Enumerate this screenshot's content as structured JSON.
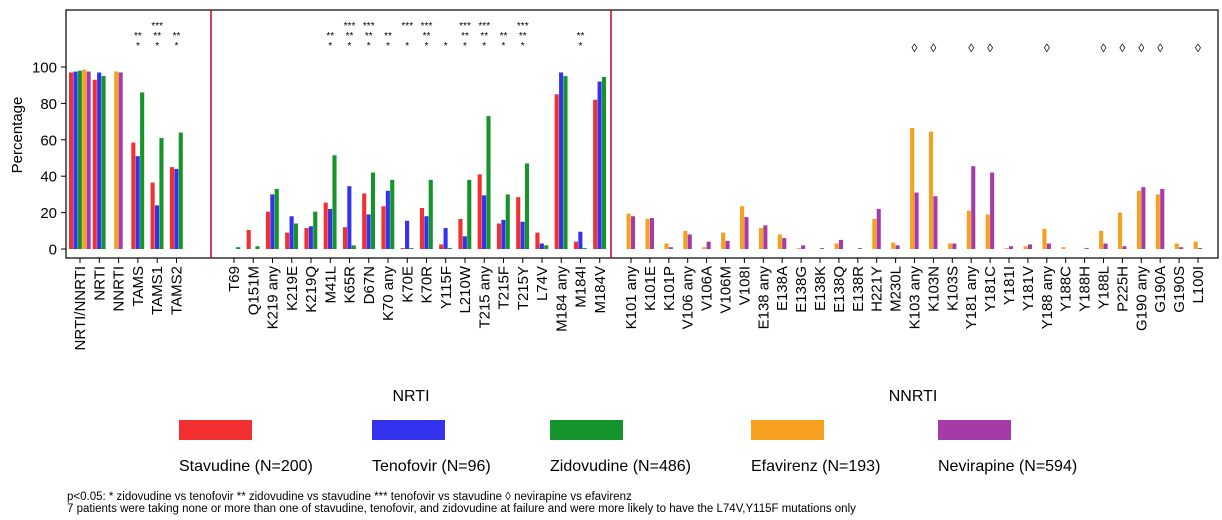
{
  "chart_data": {
    "type": "bar",
    "ylabel": "Percentage",
    "ylim": [
      -5,
      104
    ],
    "yticks": [
      0,
      20,
      40,
      60,
      80,
      100
    ],
    "grid": false,
    "legend_position": "bottom",
    "series": [
      {
        "name": "Stavudine (N=200)",
        "color": "#f23030"
      },
      {
        "name": "Tenofovir (N=96)",
        "color": "#3333ee"
      },
      {
        "name": "Zidovudine (N=486)",
        "color": "#14942a"
      },
      {
        "name": "Efavirenz (N=193)",
        "color": "#f7a020"
      },
      {
        "name": "Nevirapine (N=594)",
        "color": "#a63aa6"
      }
    ],
    "panels": [
      {
        "label": "",
        "categories": [
          {
            "name": "NRTI/NNRTI",
            "values": [
              97,
              97.5,
              98,
              98.5,
              97.5
            ],
            "stars": []
          },
          {
            "name": "NRTI",
            "values": [
              93,
              97,
              95
            ],
            "stars": []
          },
          {
            "name": "NNRTI",
            "values": [
              null,
              null,
              null,
              97.5,
              97
            ],
            "stars": []
          },
          {
            "name": "TAMS",
            "values": [
              58.5,
              51,
              86
            ],
            "stars": [
              "**",
              "*"
            ]
          },
          {
            "name": "TAMS1",
            "values": [
              36.5,
              24,
              61
            ],
            "stars": [
              "***",
              "**",
              "*"
            ]
          },
          {
            "name": "TAMS2",
            "values": [
              45,
              44,
              64
            ],
            "stars": [
              "**",
              "*"
            ]
          }
        ]
      },
      {
        "label": "NRTI",
        "categories": [
          {
            "name": "T69",
            "values": [
              0,
              0,
              1
            ],
            "stars": []
          },
          {
            "name": "Q151M",
            "values": [
              10.5,
              0,
              1.5
            ],
            "stars": []
          },
          {
            "name": "K219 any",
            "values": [
              20.5,
              30,
              33
            ],
            "stars": []
          },
          {
            "name": "K219E",
            "values": [
              9,
              18,
              14
            ],
            "stars": []
          },
          {
            "name": "K219Q",
            "values": [
              11.5,
              12.5,
              20.5
            ],
            "stars": []
          },
          {
            "name": "M41L",
            "values": [
              25.5,
              22,
              51.5
            ],
            "stars": [
              "**",
              "*"
            ]
          },
          {
            "name": "K65R",
            "values": [
              12,
              34.5,
              2
            ],
            "stars": [
              "***",
              "**",
              "*"
            ]
          },
          {
            "name": "D67N",
            "values": [
              30.5,
              19,
              42
            ],
            "stars": [
              "***",
              "**",
              "*"
            ]
          },
          {
            "name": "K70 any",
            "values": [
              23.5,
              32,
              38
            ],
            "stars": [
              "**",
              "*"
            ]
          },
          {
            "name": "K70E",
            "values": [
              0.5,
              15.5,
              0.5
            ],
            "stars": [
              "***",
              "*"
            ]
          },
          {
            "name": "K70R",
            "values": [
              22.5,
              18,
              38
            ],
            "stars": [
              "***",
              "**",
              "*"
            ]
          },
          {
            "name": "Y115F",
            "values": [
              2.5,
              11.5,
              0.5
            ],
            "stars": [
              "*"
            ]
          },
          {
            "name": "L210W",
            "values": [
              16.5,
              7,
              38
            ],
            "stars": [
              "***",
              "**",
              "*"
            ]
          },
          {
            "name": "T215 any",
            "values": [
              41,
              29.5,
              73
            ],
            "stars": [
              "***",
              "**",
              "*"
            ]
          },
          {
            "name": "T215F",
            "values": [
              14,
              16,
              30
            ],
            "stars": [
              "**",
              "*"
            ]
          },
          {
            "name": "T215Y",
            "values": [
              28.5,
              15,
              47
            ],
            "stars": [
              "***",
              "**",
              "*"
            ]
          },
          {
            "name": "L74V",
            "values": [
              9,
              3,
              2
            ],
            "stars": []
          },
          {
            "name": "M184 any",
            "values": [
              85,
              97,
              95
            ],
            "stars": []
          },
          {
            "name": "M184I",
            "values": [
              4,
              9.5,
              0.5
            ],
            "stars": [
              "**",
              "*"
            ]
          },
          {
            "name": "M184V",
            "values": [
              82,
              92,
              94.5
            ],
            "stars": []
          }
        ]
      },
      {
        "label": "NNRTI",
        "categories": [
          {
            "name": "K101 any",
            "values": [
              null,
              null,
              null,
              19.5,
              18
            ],
            "stars": []
          },
          {
            "name": "K101E",
            "values": [
              null,
              null,
              null,
              16.5,
              17
            ],
            "stars": []
          },
          {
            "name": "K101P",
            "values": [
              null,
              null,
              null,
              3,
              1
            ],
            "stars": []
          },
          {
            "name": "V106 any",
            "values": [
              null,
              null,
              null,
              10,
              8
            ],
            "stars": []
          },
          {
            "name": "V106A",
            "values": [
              null,
              null,
              null,
              1,
              4
            ],
            "stars": []
          },
          {
            "name": "V106M",
            "values": [
              null,
              null,
              null,
              9,
              4.5
            ],
            "stars": []
          },
          {
            "name": "V108I",
            "values": [
              null,
              null,
              null,
              23.5,
              17.5
            ],
            "stars": []
          },
          {
            "name": "E138 any",
            "values": [
              null,
              null,
              null,
              11.5,
              13
            ],
            "stars": []
          },
          {
            "name": "E138A",
            "values": [
              null,
              null,
              null,
              8,
              6
            ],
            "stars": []
          },
          {
            "name": "E138G",
            "values": [
              null,
              null,
              null,
              0.5,
              2
            ],
            "stars": []
          },
          {
            "name": "E138K",
            "values": [
              null,
              null,
              null,
              0,
              0.5
            ],
            "stars": []
          },
          {
            "name": "E138Q",
            "values": [
              null,
              null,
              null,
              3,
              5
            ],
            "stars": []
          },
          {
            "name": "E138R",
            "values": [
              null,
              null,
              null,
              0,
              0.5
            ],
            "stars": []
          },
          {
            "name": "H221Y",
            "values": [
              null,
              null,
              null,
              16.5,
              22
            ],
            "stars": []
          },
          {
            "name": "M230L",
            "values": [
              null,
              null,
              null,
              3.5,
              2
            ],
            "stars": []
          },
          {
            "name": "K103 any",
            "values": [
              null,
              null,
              null,
              66.5,
              31
            ],
            "stars": [
              "◊"
            ]
          },
          {
            "name": "K103N",
            "values": [
              null,
              null,
              null,
              64.5,
              29
            ],
            "stars": [
              "◊"
            ]
          },
          {
            "name": "K103S",
            "values": [
              null,
              null,
              null,
              3,
              3
            ],
            "stars": []
          },
          {
            "name": "Y181 any",
            "values": [
              null,
              null,
              null,
              21,
              45.5
            ],
            "stars": [
              "◊"
            ]
          },
          {
            "name": "Y181C",
            "values": [
              null,
              null,
              null,
              19,
              42
            ],
            "stars": [
              "◊"
            ]
          },
          {
            "name": "Y181I",
            "values": [
              null,
              null,
              null,
              0.5,
              1.5
            ],
            "stars": []
          },
          {
            "name": "Y181V",
            "values": [
              null,
              null,
              null,
              1.5,
              2.5
            ],
            "stars": []
          },
          {
            "name": "Y188 any",
            "values": [
              null,
              null,
              null,
              11,
              3
            ],
            "stars": [
              "◊"
            ]
          },
          {
            "name": "Y188C",
            "values": [
              null,
              null,
              null,
              1,
              0
            ],
            "stars": []
          },
          {
            "name": "Y188H",
            "values": [
              null,
              null,
              null,
              0,
              0.5
            ],
            "stars": []
          },
          {
            "name": "Y188L",
            "values": [
              null,
              null,
              null,
              10,
              3
            ],
            "stars": [
              "◊"
            ]
          },
          {
            "name": "P225H",
            "values": [
              null,
              null,
              null,
              20,
              1.5
            ],
            "stars": [
              "◊"
            ]
          },
          {
            "name": "G190 any",
            "values": [
              null,
              null,
              null,
              32,
              34
            ],
            "stars": [
              "◊"
            ]
          },
          {
            "name": "G190A",
            "values": [
              null,
              null,
              null,
              30,
              33
            ],
            "stars": [
              "◊"
            ]
          },
          {
            "name": "G190S",
            "values": [
              null,
              null,
              null,
              3,
              1
            ],
            "stars": []
          },
          {
            "name": "L100I",
            "values": [
              null,
              null,
              null,
              4,
              0.5
            ],
            "stars": [
              "◊"
            ]
          }
        ]
      }
    ],
    "footnotes": [
      "p<0.05: * zidovudine vs tenofovir     ** zidovudine vs stavudine     *** tenofovir vs stavudine   ◊ nevirapine vs efavirenz",
      "7 patients were taking none or more than one of stavudine, tenofovir, and zidovudine at failure and were more likely to have the L74V,Y115F mutations only"
    ]
  }
}
